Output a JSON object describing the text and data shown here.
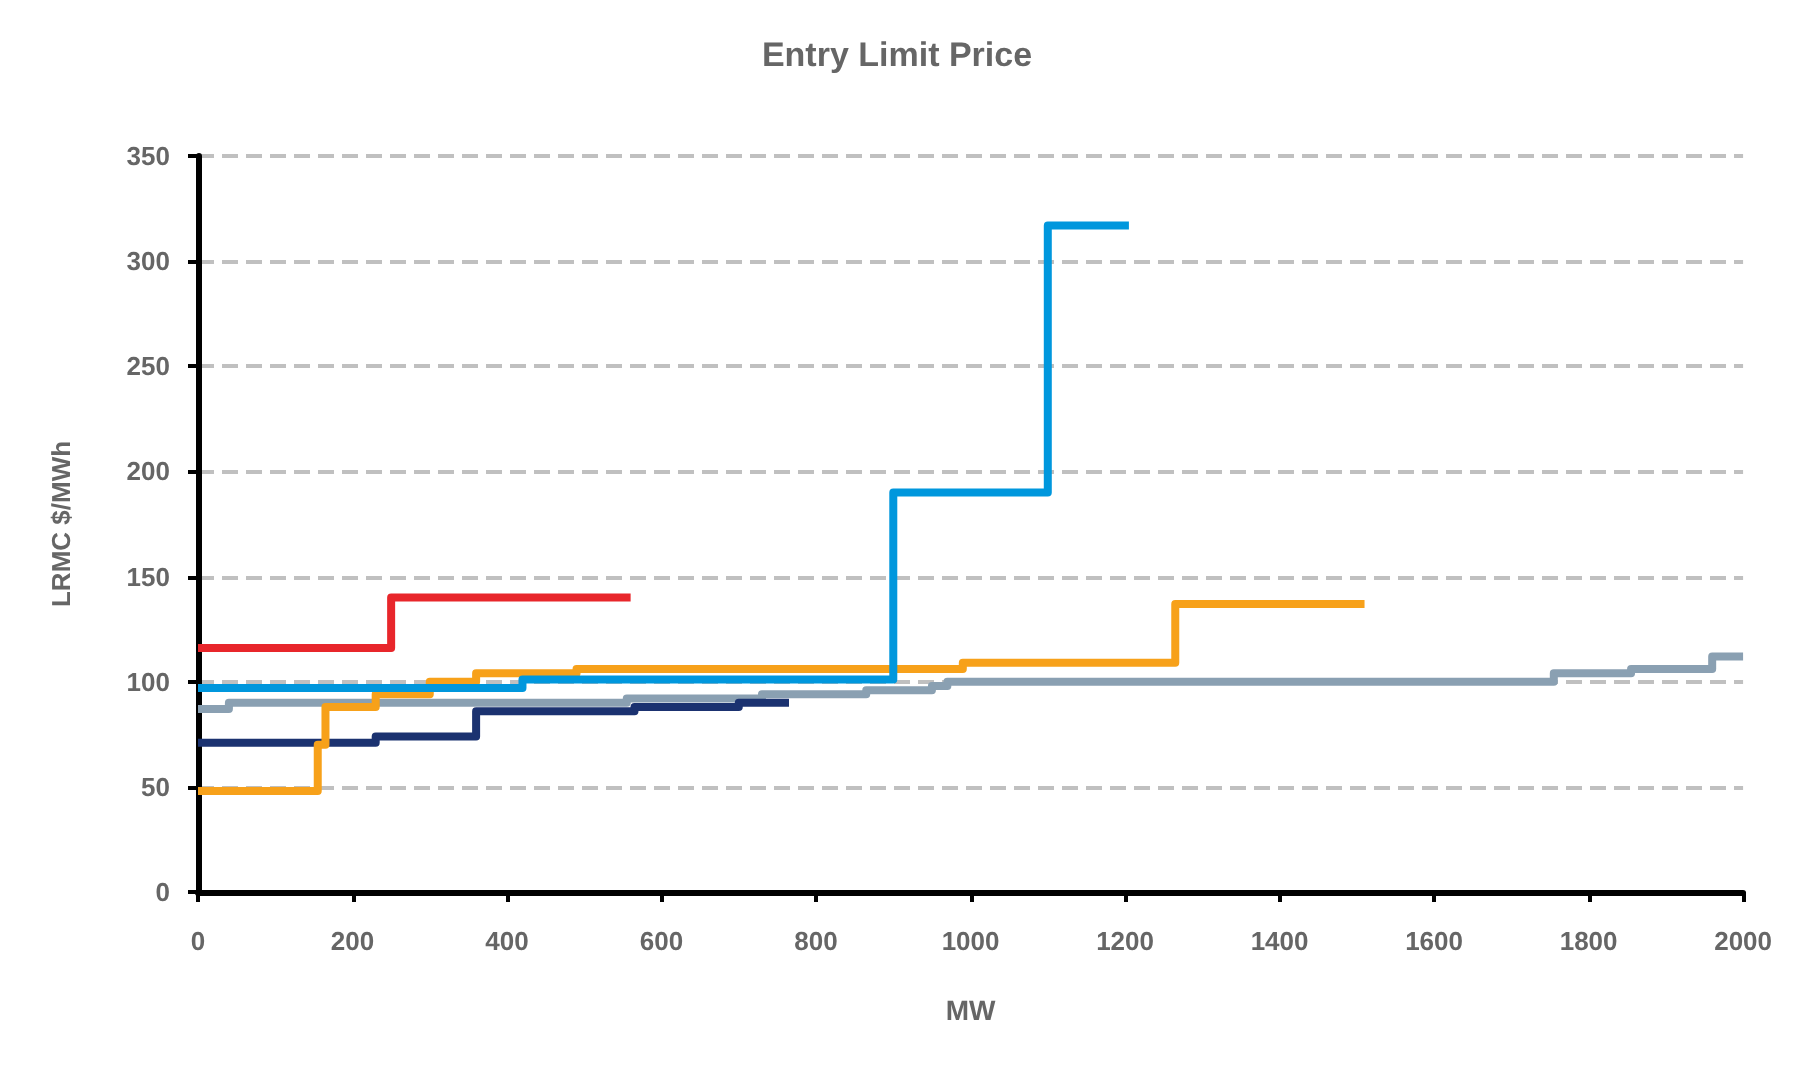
{
  "chart_data": {
    "type": "step",
    "title": "Entry Limit Price",
    "xlabel": "MW",
    "ylabel": "LRMC $/MWh",
    "xlim": [
      0,
      2000
    ],
    "xticks": [
      0,
      200,
      400,
      600,
      800,
      1000,
      1200,
      1400,
      1600,
      1800,
      2000
    ],
    "ylim": [
      0,
      350
    ],
    "yticks": [
      0,
      50,
      100,
      150,
      200,
      250,
      300,
      350
    ],
    "grid": "y",
    "marker": "none",
    "line_style": "solid",
    "series": [
      {
        "color": "#8aa0b2",
        "x": [
          0,
          40,
          555,
          730,
          865,
          950,
          970,
          1755,
          1855,
          1960,
          2000
        ],
        "values": [
          87,
          90,
          92,
          94,
          96,
          98,
          100,
          104,
          106,
          112,
          112
        ]
      },
      {
        "color": "#1b3270",
        "x": [
          0,
          230,
          360,
          565,
          700,
          765
        ],
        "values": [
          71,
          74,
          86,
          88,
          90,
          90
        ]
      },
      {
        "color": "#f7a11a",
        "x": [
          0,
          155,
          165,
          230,
          300,
          360,
          490,
          990,
          1265,
          1510
        ],
        "values": [
          48,
          70,
          88,
          94,
          100,
          104,
          106,
          109,
          137,
          137
        ]
      },
      {
        "color": "#0097dd",
        "x": [
          0,
          420,
          900,
          1100,
          1205
        ],
        "values": [
          97,
          101,
          190,
          317,
          317
        ]
      },
      {
        "color": "#e8262b",
        "x": [
          0,
          250,
          560
        ],
        "values": [
          116,
          140,
          140
        ]
      }
    ]
  }
}
